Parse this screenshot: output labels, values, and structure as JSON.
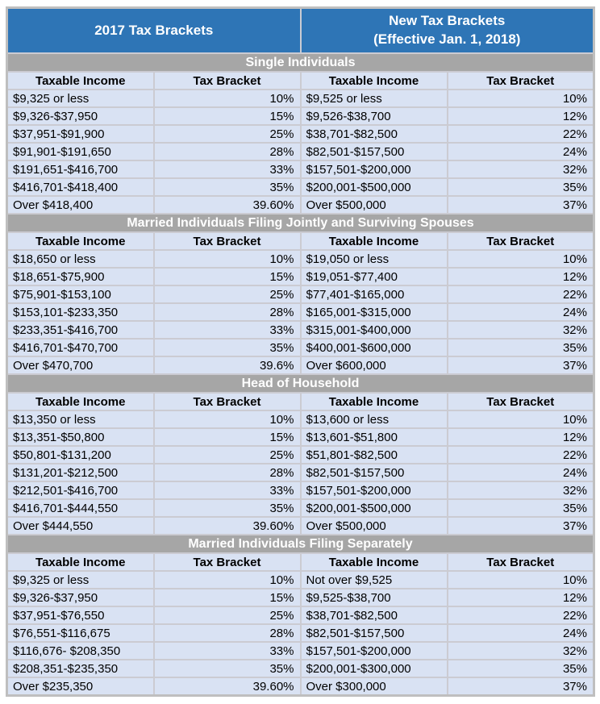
{
  "header": {
    "left_title": "2017 Tax Brackets",
    "right_title_line1": "New Tax Brackets",
    "right_title_line2": "(Effective Jan. 1, 2018)"
  },
  "column_headers": [
    "Taxable Income",
    "Tax Bracket",
    "Taxable Income",
    "Tax Bracket"
  ],
  "sections": [
    {
      "title": "Single Individuals",
      "rows": [
        [
          "$9,325 or less",
          "10%",
          "$9,525 or less",
          "10%"
        ],
        [
          "$9,326-$37,950",
          "15%",
          "$9,526-$38,700",
          "12%"
        ],
        [
          "$37,951-$91,900",
          "25%",
          "$38,701-$82,500",
          "22%"
        ],
        [
          "$91,901-$191,650",
          "28%",
          "$82,501-$157,500",
          "24%"
        ],
        [
          "$191,651-$416,700",
          "33%",
          "$157,501-$200,000",
          "32%"
        ],
        [
          "$416,701-$418,400",
          "35%",
          "$200,001-$500,000",
          "35%"
        ],
        [
          "Over $418,400",
          "39.60%",
          "Over $500,000",
          "37%"
        ]
      ]
    },
    {
      "title": "Married Individuals Filing Jointly and Surviving Spouses",
      "rows": [
        [
          "$18,650 or less",
          "10%",
          "$19,050 or less",
          "10%"
        ],
        [
          "$18,651-$75,900",
          "15%",
          "$19,051-$77,400",
          "12%"
        ],
        [
          "$75,901-$153,100",
          "25%",
          "$77,401-$165,000",
          "22%"
        ],
        [
          "$153,101-$233,350",
          "28%",
          "$165,001-$315,000",
          "24%"
        ],
        [
          "$233,351-$416,700",
          "33%",
          "$315,001-$400,000",
          "32%"
        ],
        [
          "$416,701-$470,700",
          "35%",
          "$400,001-$600,000",
          "35%"
        ],
        [
          "Over $470,700",
          "39.6%",
          "Over $600,000",
          "37%"
        ]
      ]
    },
    {
      "title": "Head of Household",
      "rows": [
        [
          "$13,350 or less",
          "10%",
          "$13,600 or less",
          "10%"
        ],
        [
          "$13,351-$50,800",
          "15%",
          "$13,601-$51,800",
          "12%"
        ],
        [
          "$50,801-$131,200",
          "25%",
          "$51,801-$82,500",
          "22%"
        ],
        [
          "$131,201-$212,500",
          "28%",
          "$82,501-$157,500",
          "24%"
        ],
        [
          "$212,501-$416,700",
          "33%",
          "$157,501-$200,000",
          "32%"
        ],
        [
          "$416,701-$444,550",
          "35%",
          "$200,001-$500,000",
          "35%"
        ],
        [
          "Over $444,550",
          "39.60%",
          "Over $500,000",
          "37%"
        ]
      ]
    },
    {
      "title": "Married Individuals Filing Separately",
      "rows": [
        [
          "$9,325 or less",
          "10%",
          "Not over $9,525",
          "10%"
        ],
        [
          "$9,326-$37,950",
          "15%",
          "$9,525-$38,700",
          "12%"
        ],
        [
          "$37,951-$76,550",
          "25%",
          "$38,701-$82,500",
          "22%"
        ],
        [
          "$76,551-$116,675",
          "28%",
          "$82,501-$157,500",
          "24%"
        ],
        [
          "$116,676- $208,350",
          "33%",
          "$157,501-$200,000",
          "32%"
        ],
        [
          "$208,351-$235,350",
          "35%",
          "$200,001-$300,000",
          "35%"
        ],
        [
          "Over $235,350",
          "39.60%",
          "Over $300,000",
          "37%"
        ]
      ]
    }
  ],
  "colors": {
    "header_blue": "#2E75B6",
    "section_gray": "#A6A6A6",
    "cell_blue": "#D9E2F3",
    "gridline": "#CBCBD2",
    "outer_border": "#BFBFBF"
  }
}
